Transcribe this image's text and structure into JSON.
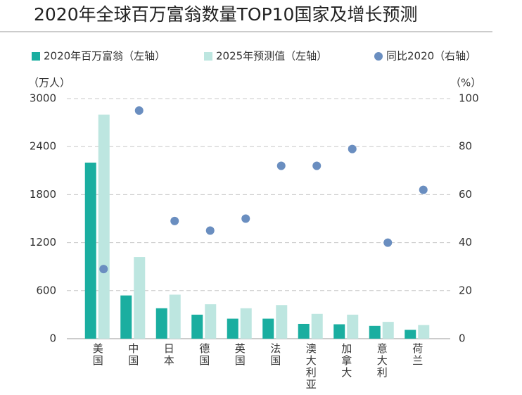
{
  "chart_data": {
    "type": "bar",
    "title": "2020年全球百万富翁数量TOP10国家及增长预测",
    "y_label": "（万人）",
    "y2_label": "（%）",
    "categories": [
      "美国",
      "中国",
      "日本",
      "德国",
      "英国",
      "法国",
      "澳大利亚",
      "加拿大",
      "意大利",
      "荷兰"
    ],
    "series": [
      {
        "name": "2020年百万富翁（左轴）",
        "type": "bar",
        "color": "#1aaea0",
        "values": [
          2200,
          540,
          380,
          300,
          250,
          250,
          185,
          180,
          160,
          110
        ]
      },
      {
        "name": "2025年预测值（左轴）",
        "type": "bar",
        "color": "#bde6e0",
        "values": [
          2800,
          1020,
          550,
          430,
          380,
          420,
          310,
          300,
          210,
          170
        ]
      },
      {
        "name": "同比2020（右轴）",
        "type": "scatter",
        "axis": "y2",
        "color": "#6a8ec0",
        "values": [
          29,
          95,
          49,
          45,
          50,
          72,
          72,
          79,
          40,
          62
        ]
      }
    ],
    "ylim": [
      0,
      3000
    ],
    "yticks": [
      0,
      600,
      1200,
      1800,
      2400,
      3000
    ],
    "y2lim": [
      0,
      100
    ],
    "y2ticks": [
      0,
      20,
      40,
      60,
      80,
      100
    ],
    "grid": true
  }
}
